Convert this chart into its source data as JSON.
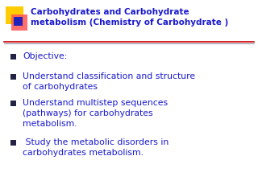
{
  "bg_color": "#ffffff",
  "title_line1": "Carbohydrates and Carbohydrate",
  "title_line2": "metabolism (Chemistry of Carbohydrate )",
  "title_color": "#1a1acc",
  "title_fontsize": 7.5,
  "bullet_color": "#1a1acc",
  "bullet_marker_color": "#222244",
  "bullet_fontsize": 7.8,
  "bullets": [
    "Objective:",
    "Understand classification and structure\nof carbohydrates",
    "Understand multistep sequences\n(pathways) for carbohydrates\nmetabolism.",
    " Study the metabolic disorders in\ncarbohydrates metabolism."
  ],
  "separator_color": "#cc0000",
  "square_yellow": "#ffcc00",
  "square_red": "#ff5555",
  "square_blue": "#2222bb",
  "line_color": "#555577"
}
